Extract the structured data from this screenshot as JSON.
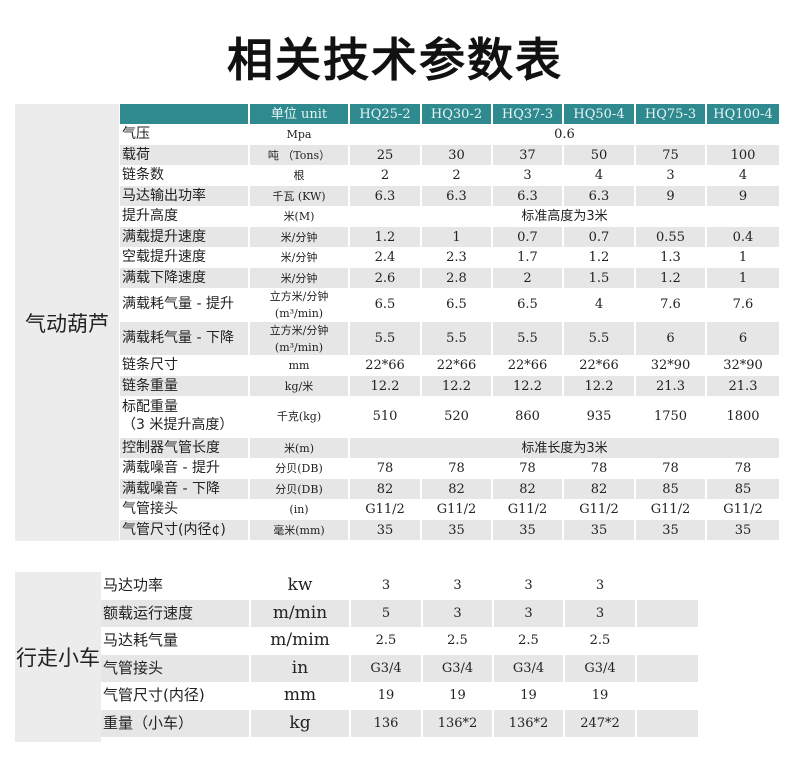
{
  "title": "相关技术参数表",
  "hoist": {
    "category": "气动葫芦",
    "header": {
      "unit": "单位 unit",
      "models": [
        "HQ25-2",
        "HQ30-2",
        "HQ37-3",
        "HQ50-4",
        "HQ75-3",
        "HQ100-4"
      ]
    },
    "rows": [
      {
        "name": "气压",
        "unit": "Mpa",
        "span": "0.6"
      },
      {
        "name": "载荷",
        "unit": "吨 （Tons）",
        "values": [
          "25",
          "30",
          "37",
          "50",
          "75",
          "100"
        ]
      },
      {
        "name": "链条数",
        "unit": "根",
        "values": [
          "2",
          "2",
          "3",
          "4",
          "3",
          "4"
        ]
      },
      {
        "name": "马达输出功率",
        "unit": "千瓦 (KW)",
        "values": [
          "6.3",
          "6.3",
          "6.3",
          "6.3",
          "9",
          "9"
        ]
      },
      {
        "name": "提升高度",
        "unit": "米(M)",
        "span": "标准高度为3米"
      },
      {
        "name": "满载提升速度",
        "unit": "米/分钟",
        "values": [
          "1.2",
          "1",
          "0.7",
          "0.7",
          "0.55",
          "0.4"
        ]
      },
      {
        "name": "空载提升速度",
        "unit": "米/分钟",
        "values": [
          "2.4",
          "2.3",
          "1.7",
          "1.2",
          "1.3",
          "1"
        ]
      },
      {
        "name": "满载下降速度",
        "unit": "米/分钟",
        "values": [
          "2.6",
          "2.8",
          "2",
          "1.5",
          "1.2",
          "1"
        ]
      },
      {
        "name": "满载耗气量 - 提升",
        "unit": "立方米/分钟",
        "unit2": "(m³/min)",
        "values": [
          "6.5",
          "6.5",
          "6.5",
          "4",
          "7.6",
          "7.6"
        ]
      },
      {
        "name": "满载耗气量 - 下降",
        "unit": "立方米/分钟",
        "unit2": "(m³/min)",
        "values": [
          "5.5",
          "5.5",
          "5.5",
          "5.5",
          "6",
          "6"
        ]
      },
      {
        "name": "链条尺寸",
        "unit": "mm",
        "values": [
          "22*66",
          "22*66",
          "22*66",
          "22*66",
          "32*90",
          "32*90"
        ]
      },
      {
        "name": "链条重量",
        "unit": "kg/米",
        "values": [
          "12.2",
          "12.2",
          "12.2",
          "12.2",
          "21.3",
          "21.3"
        ]
      },
      {
        "name": "标配重量",
        "name2": "（3 米提升高度）",
        "unit": "千克(kg)",
        "values": [
          "510",
          "520",
          "860",
          "935",
          "1750",
          "1800"
        ]
      },
      {
        "name": "控制器气管长度",
        "unit": "米(m)",
        "span": "标准长度为3米"
      },
      {
        "name": "满载噪音 - 提升",
        "unit": "分贝(DB)",
        "values": [
          "78",
          "78",
          "78",
          "78",
          "78",
          "78"
        ]
      },
      {
        "name": "满载噪音 - 下降",
        "unit": "分贝(DB)",
        "values": [
          "82",
          "82",
          "82",
          "82",
          "85",
          "85"
        ]
      },
      {
        "name": "气管接头",
        "unit": "(in)",
        "values": [
          "G11/2",
          "G11/2",
          "G11/2",
          "G11/2",
          "G11/2",
          "G11/2"
        ]
      },
      {
        "name": "气管尺寸(内径¢)",
        "unit": "毫米(mm)",
        "values": [
          "35",
          "35",
          "35",
          "35",
          "35",
          "35"
        ]
      }
    ]
  },
  "trolley": {
    "category": "行走小车",
    "rows": [
      {
        "name": "马达功率",
        "unit": "kw",
        "values": [
          "3",
          "3",
          "3",
          "3"
        ]
      },
      {
        "name": "额载运行速度",
        "unit": "m/min",
        "values": [
          "5",
          "3",
          "3",
          "3"
        ]
      },
      {
        "name": "马达耗气量",
        "unit": "m/mim",
        "values": [
          "2.5",
          "2.5",
          "2.5",
          "2.5"
        ]
      },
      {
        "name": "气管接头",
        "unit": "in",
        "values": [
          "G3/4",
          "G3/4",
          "G3/4",
          "G3/4"
        ]
      },
      {
        "name": "气管尺寸(内径)",
        "unit": "mm",
        "values": [
          "19",
          "19",
          "19",
          "19"
        ]
      },
      {
        "name": "重量（小车）",
        "unit": "kg",
        "values": [
          "136",
          "136*2",
          "136*2",
          "247*2"
        ]
      }
    ]
  },
  "colors": {
    "header": "#2e8a8f",
    "stripe": "#e6e6e6",
    "category_bg": "#ececec"
  }
}
